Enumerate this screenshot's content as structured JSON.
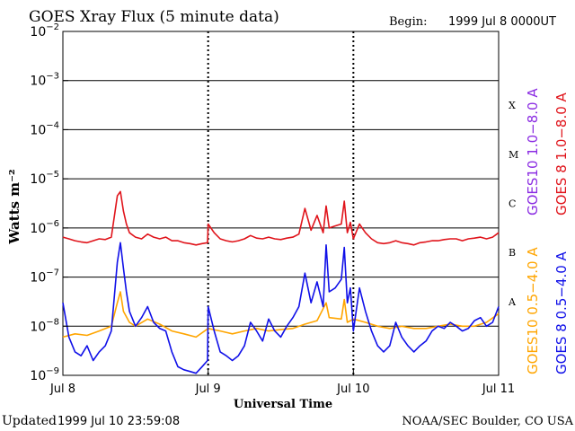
{
  "header": {
    "title": "GOES Xray Flux (5 minute data)",
    "begin_label": "Begin:",
    "begin_value": "1999 Jul 8 0000UT"
  },
  "footer": {
    "updated_label": "Updated",
    "updated_value": "1999 Jul 10 23:59:08",
    "credit": "NOAA/SEC Boulder, CO USA"
  },
  "colors": {
    "long_channel": "#e0141b",
    "short_goes8": "#1010e8",
    "short_goes10": "#ffa500",
    "goes10_long_label": "#8a2be2",
    "axes": "#000000"
  },
  "chart_data": {
    "type": "line",
    "title": "GOES Xray Flux (5 minute data)",
    "xlabel": "Universal Time",
    "ylabel": "Watts m⁻²",
    "yscale": "log",
    "ylim": [
      1e-09,
      0.01
    ],
    "xlim_hours": [
      0,
      72
    ],
    "grid": "horizontal lines at each decade from 1e-8 to 1e-3; dashed day separators",
    "y_ticks": [
      {
        "value": 0.01,
        "base": "10",
        "exp": "−2"
      },
      {
        "value": 0.001,
        "base": "10",
        "exp": "−3"
      },
      {
        "value": 0.0001,
        "base": "10",
        "exp": "−4"
      },
      {
        "value": 1e-05,
        "base": "10",
        "exp": "−5"
      },
      {
        "value": 1e-06,
        "base": "10",
        "exp": "−6"
      },
      {
        "value": 1e-07,
        "base": "10",
        "exp": "−7"
      },
      {
        "value": 1e-08,
        "base": "10",
        "exp": "−8"
      },
      {
        "value": 1e-09,
        "base": "10",
        "exp": "−9"
      }
    ],
    "x_ticks": [
      {
        "hour": 0,
        "label": "Jul 8"
      },
      {
        "hour": 24,
        "label": "Jul 9"
      },
      {
        "hour": 48,
        "label": "Jul 10"
      },
      {
        "hour": 72,
        "label": "Jul 11"
      }
    ],
    "flare_classes": [
      {
        "label": "X",
        "min": 0.0001,
        "max": 0.001
      },
      {
        "label": "M",
        "min": 1e-05,
        "max": 0.0001
      },
      {
        "label": "C",
        "min": 1e-06,
        "max": 1e-05
      },
      {
        "label": "B",
        "min": 1e-07,
        "max": 1e-06
      },
      {
        "label": "A",
        "min": 1e-08,
        "max": 1e-07
      }
    ],
    "legend": {
      "placement": "right, vertical",
      "entries": [
        {
          "text": "GOES10 1.0−8.0 A",
          "color": "#8a2be2"
        },
        {
          "text": "GOES 8 1.0−8.0 A",
          "color": "#e0141b"
        },
        {
          "text": "GOES10 0.5−4.0 A",
          "color": "#ffa500"
        },
        {
          "text": "GOES 8 0.5−4.0 A",
          "color": "#1010e8"
        }
      ]
    },
    "series": [
      {
        "name": "GOES 8 1.0−8.0 A",
        "color": "#e0141b",
        "x_hours": [
          0,
          1,
          2,
          3,
          4,
          5,
          6,
          7,
          8,
          9,
          9.5,
          10,
          10.5,
          11,
          12,
          13,
          14,
          15,
          16,
          17,
          18,
          19,
          20,
          21,
          22,
          23,
          23.9,
          24,
          25,
          26,
          27,
          28,
          29,
          30,
          31,
          32,
          33,
          34,
          35,
          36,
          37,
          38,
          39,
          40,
          41,
          42,
          43,
          43.5,
          44,
          45,
          46,
          46.5,
          47,
          47.5,
          48,
          49,
          50,
          51,
          52,
          53,
          54,
          55,
          56,
          57,
          58,
          59,
          60,
          61,
          62,
          63,
          64,
          65,
          66,
          67,
          68,
          69,
          70,
          71,
          72
        ],
        "values": [
          6.5e-07,
          6e-07,
          5.5e-07,
          5.2e-07,
          5e-07,
          5.5e-07,
          6e-07,
          5.8e-07,
          6.5e-07,
          4.5e-06,
          5.5e-06,
          2.2e-06,
          1.2e-06,
          8e-07,
          6.5e-07,
          6e-07,
          7.5e-07,
          6.5e-07,
          6e-07,
          6.5e-07,
          5.5e-07,
          5.5e-07,
          5e-07,
          4.8e-07,
          4.5e-07,
          4.8e-07,
          5e-07,
          1.2e-06,
          8e-07,
          6e-07,
          5.5e-07,
          5.2e-07,
          5.5e-07,
          6e-07,
          7e-07,
          6.2e-07,
          6e-07,
          6.5e-07,
          6e-07,
          5.8e-07,
          6.2e-07,
          6.5e-07,
          7.5e-07,
          2.5e-06,
          9e-07,
          1.8e-06,
          8e-07,
          2.8e-06,
          1e-06,
          1.1e-06,
          1.2e-06,
          3.5e-06,
          8e-07,
          1.3e-06,
          6e-07,
          1.2e-06,
          8e-07,
          6e-07,
          5e-07,
          4.8e-07,
          5e-07,
          5.5e-07,
          5e-07,
          4.8e-07,
          4.5e-07,
          5e-07,
          5.2e-07,
          5.5e-07,
          5.5e-07,
          5.8e-07,
          6e-07,
          6e-07,
          5.5e-07,
          6e-07,
          6.2e-07,
          6.5e-07,
          6e-07,
          6.5e-07,
          8e-07
        ]
      },
      {
        "name": "GOES10 0.5−4.0 A",
        "color": "#ffa500",
        "x_hours": [
          0,
          2,
          4,
          6,
          8,
          9,
          9.5,
          10,
          11,
          12,
          14,
          16,
          18,
          20,
          22,
          24,
          26,
          28,
          30,
          32,
          34,
          36,
          38,
          40,
          42,
          43.5,
          44,
          46,
          46.5,
          47,
          48,
          50,
          52,
          54,
          56,
          58,
          60,
          62,
          64,
          66,
          68,
          70,
          72
        ],
        "values": [
          6e-09,
          7e-09,
          6.5e-09,
          8e-09,
          1e-08,
          3e-08,
          5e-08,
          2e-08,
          1.2e-08,
          1e-08,
          1.4e-08,
          1.1e-08,
          8e-09,
          7e-09,
          6e-09,
          9e-09,
          8e-09,
          7e-09,
          8e-09,
          9e-09,
          8e-09,
          8.5e-09,
          9e-09,
          1.1e-08,
          1.3e-08,
          3e-08,
          1.5e-08,
          1.4e-08,
          3.5e-08,
          1.2e-08,
          1.4e-08,
          1.2e-08,
          1e-08,
          9e-09,
          1e-08,
          9e-09,
          9e-09,
          1e-08,
          1.1e-08,
          1e-08,
          1e-08,
          1.2e-08,
          1.8e-08
        ]
      },
      {
        "name": "GOES 8 0.5−4.0 A",
        "color": "#1010e8",
        "x_hours": [
          0,
          1,
          2,
          3,
          4,
          5,
          6,
          7,
          8,
          9,
          9.5,
          10,
          10.5,
          11,
          12,
          13,
          14,
          15,
          16,
          17,
          18,
          19,
          20,
          21,
          22,
          23,
          23.9,
          24,
          25,
          26,
          27,
          28,
          29,
          30,
          31,
          32,
          33,
          34,
          35,
          36,
          37,
          38,
          39,
          40,
          41,
          42,
          43,
          43.5,
          44,
          45,
          46,
          46.5,
          47,
          47.5,
          48,
          49,
          50,
          51,
          52,
          53,
          54,
          55,
          56,
          57,
          58,
          59,
          60,
          61,
          62,
          63,
          64,
          65,
          66,
          67,
          68,
          69,
          70,
          71,
          72
        ],
        "values": [
          3e-08,
          6e-09,
          3e-09,
          2.5e-09,
          4e-09,
          2e-09,
          3e-09,
          4e-09,
          8e-09,
          2e-07,
          5e-07,
          1.5e-07,
          5e-08,
          2e-08,
          1e-08,
          1.5e-08,
          2.5e-08,
          1.2e-08,
          9e-09,
          8e-09,
          3e-09,
          1.5e-09,
          1.3e-09,
          1.2e-09,
          1.1e-09,
          1.5e-09,
          2e-09,
          2.5e-08,
          8e-09,
          3e-09,
          2.5e-09,
          2e-09,
          2.5e-09,
          4e-09,
          1.2e-08,
          8e-09,
          5e-09,
          1.4e-08,
          8e-09,
          6e-09,
          1e-08,
          1.5e-08,
          2.5e-08,
          1.2e-07,
          3e-08,
          8e-08,
          2.5e-08,
          4.5e-07,
          5e-08,
          6e-08,
          9e-08,
          4e-07,
          3e-08,
          6e-08,
          8e-09,
          6e-08,
          2e-08,
          8e-09,
          4e-09,
          3e-09,
          4e-09,
          1.2e-08,
          6e-09,
          4e-09,
          3e-09,
          4e-09,
          5e-09,
          8e-09,
          1e-08,
          9e-09,
          1.2e-08,
          1e-08,
          8e-09,
          9e-09,
          1.3e-08,
          1.5e-08,
          1e-08,
          1.2e-08,
          2.5e-08
        ]
      }
    ]
  }
}
